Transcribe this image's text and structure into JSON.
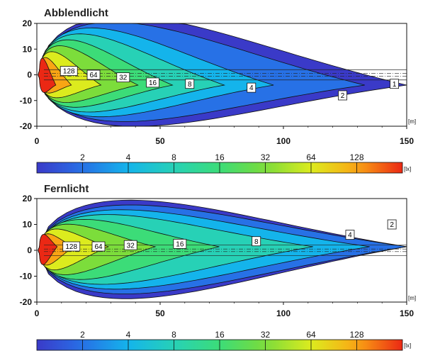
{
  "chart_data": [
    {
      "type": "heatmap",
      "title": "Abblendlicht",
      "x_unit": "[m]",
      "xlim": [
        0,
        150
      ],
      "ylim": [
        -20,
        20
      ],
      "x_ticks": [
        0,
        50,
        100,
        150
      ],
      "y_ticks": [
        20,
        10,
        0,
        -10,
        -20
      ],
      "contour_levels": [
        1,
        2,
        4,
        8,
        16,
        32,
        64,
        128
      ],
      "contour_reach_m": [
        {
          "level": 1,
          "reach": 150
        },
        {
          "level": 2,
          "reach": 133
        },
        {
          "level": 4,
          "reach": 96
        },
        {
          "level": 8,
          "reach": 76
        },
        {
          "level": 16,
          "reach": 55
        },
        {
          "level": 32,
          "reach": 41
        },
        {
          "level": 64,
          "reach": 26
        },
        {
          "level": 128,
          "reach": 14
        }
      ],
      "contour_labels": [
        {
          "text": "128",
          "x": 13,
          "y": 1.5
        },
        {
          "text": "64",
          "x": 23,
          "y": 0
        },
        {
          "text": "32",
          "x": 35,
          "y": -1
        },
        {
          "text": "16",
          "x": 47,
          "y": -3
        },
        {
          "text": "8",
          "x": 62,
          "y": -3.5
        },
        {
          "text": "4",
          "x": 87,
          "y": -5
        },
        {
          "text": "2",
          "x": 124,
          "y": -8
        },
        {
          "text": "1",
          "x": 145,
          "y": -3.5
        }
      ],
      "colorbar": {
        "labels": [
          "2",
          "4",
          "8",
          "16",
          "32",
          "64",
          "128"
        ],
        "unit": "[lx]",
        "range": [
          1,
          256
        ]
      }
    },
    {
      "type": "heatmap",
      "title": "Fernlicht",
      "x_unit": "[m]",
      "xlim": [
        0,
        150
      ],
      "ylim": [
        -20,
        20
      ],
      "x_ticks": [
        0,
        50,
        100,
        150
      ],
      "y_ticks": [
        20,
        10,
        0,
        -10,
        -20
      ],
      "contour_levels": [
        1,
        2,
        4,
        8,
        16,
        32,
        64,
        128
      ],
      "contour_reach_m": [
        {
          "level": 1,
          "reach": 150
        },
        {
          "level": 2,
          "reach": 150
        },
        {
          "level": 4,
          "reach": 135
        },
        {
          "level": 8,
          "reach": 112
        },
        {
          "level": 16,
          "reach": 74
        },
        {
          "level": 32,
          "reach": 48
        },
        {
          "level": 64,
          "reach": 29
        },
        {
          "level": 128,
          "reach": 15
        }
      ],
      "contour_labels": [
        {
          "text": "128",
          "x": 14,
          "y": 1.5
        },
        {
          "text": "64",
          "x": 25,
          "y": 1.5
        },
        {
          "text": "32",
          "x": 38,
          "y": 2
        },
        {
          "text": "16",
          "x": 58,
          "y": 2.5
        },
        {
          "text": "8",
          "x": 89,
          "y": 3.5
        },
        {
          "text": "4",
          "x": 127,
          "y": 6
        },
        {
          "text": "2",
          "x": 144,
          "y": 10
        }
      ],
      "colorbar": {
        "labels": [
          "2",
          "4",
          "8",
          "16",
          "32",
          "64",
          "128"
        ],
        "unit": "[lx]",
        "range": [
          1,
          256
        ]
      }
    }
  ]
}
